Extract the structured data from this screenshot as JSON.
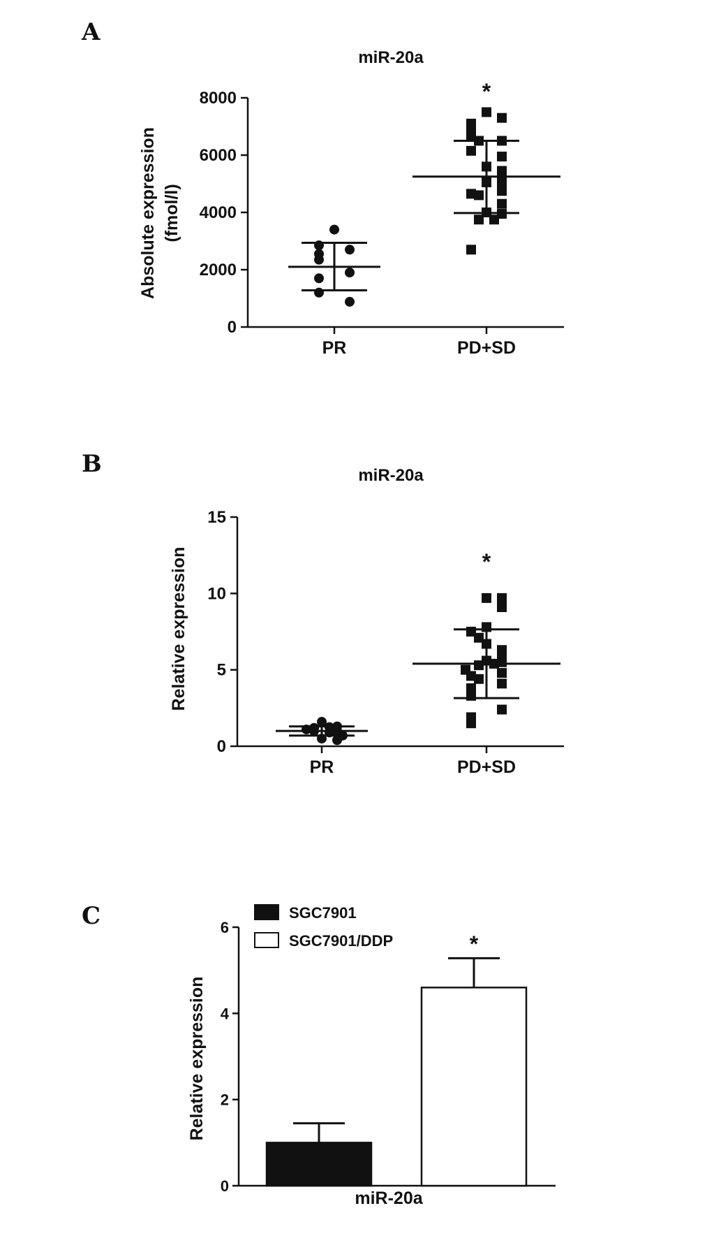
{
  "panels": [
    {
      "letter": "A",
      "chart_data": {
        "type": "scatter",
        "title": "miR-20a",
        "ylabel": [
          "Absolute expression",
          "(fmol/l)"
        ],
        "ylim": [
          0,
          8000
        ],
        "yticks": [
          0,
          2000,
          4000,
          6000,
          8000
        ],
        "categories": [
          "PR",
          "PD+SD"
        ],
        "markers": [
          "circle",
          "square"
        ],
        "groups": [
          {
            "category": "PR",
            "mean": 2100,
            "sd_low": 1280,
            "sd_high": 2940,
            "values": [
              3400,
              2850,
              2700,
              2550,
              2350,
              1900,
              1700,
              1200,
              880
            ]
          },
          {
            "category": "PD+SD",
            "mean": 5250,
            "sd_low": 3980,
            "sd_high": 6500,
            "values": [
              7500,
              7100,
              7300,
              6850,
              6700,
              6500,
              6500,
              6150,
              5950,
              5600,
              5450,
              5250,
              5050,
              4950,
              4750,
              4650,
              4600,
              4300,
              4000,
              3950,
              3750,
              3750,
              2700
            ]
          }
        ],
        "annotations": [
          {
            "category": "PD+SD",
            "text": "*"
          }
        ]
      }
    },
    {
      "letter": "B",
      "chart_data": {
        "type": "scatter",
        "title": "miR-20a",
        "ylabel": [
          "Relative expression"
        ],
        "ylim": [
          0,
          15
        ],
        "yticks": [
          0,
          5,
          10,
          15
        ],
        "categories": [
          "PR",
          "PD+SD"
        ],
        "markers": [
          "circle",
          "square"
        ],
        "groups": [
          {
            "category": "PR",
            "mean": 1.0,
            "sd_low": 0.7,
            "sd_high": 1.3,
            "values": [
              1.6,
              1.3,
              1.25,
              1.2,
              1.1,
              1.0,
              1.0,
              0.9,
              0.7,
              0.5,
              0.4
            ]
          },
          {
            "category": "PD+SD",
            "mean": 5.4,
            "sd_low": 3.15,
            "sd_high": 7.65,
            "values": [
              9.7,
              9.7,
              9.1,
              7.8,
              7.5,
              7.1,
              6.7,
              6.3,
              5.8,
              5.6,
              5.5,
              5.4,
              5.3,
              5.0,
              4.8,
              4.6,
              4.4,
              4.1,
              3.8,
              3.3,
              2.4,
              1.9,
              1.5
            ]
          }
        ],
        "annotations": [
          {
            "category": "PD+SD",
            "text": "*"
          }
        ]
      }
    },
    {
      "letter": "C",
      "chart_data": {
        "type": "bar",
        "xlabel": "miR-20a",
        "ylabel": [
          "Relative expression"
        ],
        "ylim": [
          0,
          6
        ],
        "yticks": [
          0,
          2,
          4,
          6
        ],
        "series": [
          {
            "name": "SGC7901",
            "value": 1.0,
            "error": 0.45,
            "fill": "#111111"
          },
          {
            "name": "SGC7901/DDP",
            "value": 4.6,
            "error": 0.68,
            "fill": "#ffffff"
          }
        ],
        "annotations": [
          {
            "series": "SGC7901/DDP",
            "text": "*"
          }
        ]
      }
    }
  ]
}
